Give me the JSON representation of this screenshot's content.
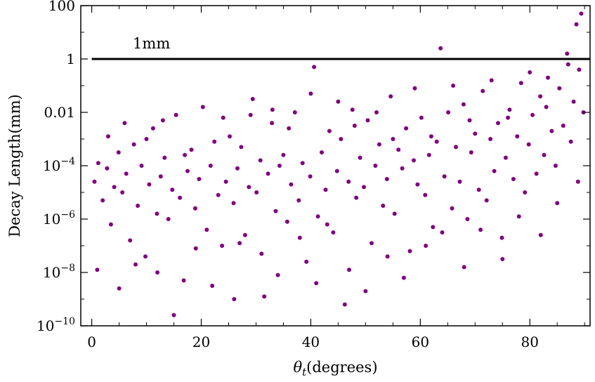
{
  "chart_data": {
    "type": "scatter",
    "title": "",
    "xlabel_symbol": "θ",
    "xlabel_subscript": "t",
    "xlabel_text": "(degrees)",
    "ylabel": "Decay Length(mm)",
    "xlim": [
      -2,
      91
    ],
    "ylim_log10": [
      -10,
      2
    ],
    "y_scale": "log",
    "x_ticks": [
      0,
      20,
      40,
      60,
      80
    ],
    "x_tick_labels": [
      "0",
      "20",
      "40",
      "60",
      "80"
    ],
    "y_ticks_log10": [
      2,
      0,
      -2,
      -4,
      -6,
      -8,
      -10
    ],
    "y_tick_labels": [
      {
        "base": "100",
        "exp": ""
      },
      {
        "base": "1",
        "exp": ""
      },
      {
        "base": "0.01",
        "exp": ""
      },
      {
        "base": "10",
        "exp": "−4"
      },
      {
        "base": "10",
        "exp": "−6"
      },
      {
        "base": "10",
        "exp": "−8"
      },
      {
        "base": "10",
        "exp": "−10"
      }
    ],
    "grid": false,
    "marker_color": "#800080",
    "reference_line": {
      "y_value": 1,
      "label": "1mm",
      "color": "#000000"
    },
    "series": [
      {
        "points": [
          [
            0.5,
            -4.6
          ],
          [
            1.2,
            -3.9
          ],
          [
            2.0,
            -5.3
          ],
          [
            2.8,
            -4.1
          ],
          [
            3.5,
            -6.2
          ],
          [
            4.1,
            -4.8
          ],
          [
            4.9,
            -3.5
          ],
          [
            5.6,
            -5.0
          ],
          [
            6.3,
            -4.3
          ],
          [
            7.0,
            -6.8
          ],
          [
            7.7,
            -3.2
          ],
          [
            8.4,
            -5.5
          ],
          [
            9.1,
            -4.0
          ],
          [
            9.8,
            -7.4
          ],
          [
            10.5,
            -4.7
          ],
          [
            11.2,
            -2.6
          ],
          [
            11.9,
            -5.8
          ],
          [
            12.6,
            -4.4
          ],
          [
            13.3,
            -3.7
          ],
          [
            14.0,
            -6.0
          ],
          [
            14.7,
            -4.9
          ],
          [
            15.4,
            -2.1
          ],
          [
            16.1,
            -5.2
          ],
          [
            16.8,
            -8.3
          ],
          [
            17.5,
            -4.2
          ],
          [
            18.2,
            -3.4
          ],
          [
            18.9,
            -5.6
          ],
          [
            19.6,
            -4.5
          ],
          [
            20.3,
            -1.8
          ],
          [
            21.0,
            -6.4
          ],
          [
            21.7,
            -4.0
          ],
          [
            22.4,
            -3.1
          ],
          [
            23.1,
            -5.1
          ],
          [
            23.8,
            -7.0
          ],
          [
            24.5,
            -4.6
          ],
          [
            25.2,
            -2.9
          ],
          [
            25.9,
            -5.4
          ],
          [
            26.6,
            -4.1
          ],
          [
            27.3,
            -3.3
          ],
          [
            28.0,
            -6.6
          ],
          [
            28.7,
            -4.8
          ],
          [
            29.4,
            -1.5
          ],
          [
            30.1,
            -5.0
          ],
          [
            30.8,
            -3.8
          ],
          [
            31.5,
            -8.9
          ],
          [
            32.2,
            -4.3
          ],
          [
            32.9,
            -2.4
          ],
          [
            33.6,
            -5.7
          ],
          [
            34.3,
            -4.0
          ],
          [
            35.0,
            -3.6
          ],
          [
            35.7,
            -6.1
          ],
          [
            36.4,
            -4.7
          ],
          [
            37.1,
            -2.0
          ],
          [
            37.8,
            -5.3
          ],
          [
            38.5,
            -3.9
          ],
          [
            39.2,
            -7.6
          ],
          [
            39.9,
            -4.4
          ],
          [
            40.6,
            -0.3
          ],
          [
            41.3,
            -5.9
          ],
          [
            42.0,
            -3.5
          ],
          [
            42.7,
            -4.9
          ],
          [
            43.4,
            -2.7
          ],
          [
            44.1,
            -6.5
          ],
          [
            44.8,
            -4.2
          ],
          [
            45.5,
            -3.0
          ],
          [
            46.2,
            -9.2
          ],
          [
            46.9,
            -4.6
          ],
          [
            47.6,
            -1.9
          ],
          [
            48.3,
            -5.2
          ],
          [
            49.0,
            -3.7
          ],
          [
            49.7,
            -4.8
          ],
          [
            50.4,
            -2.3
          ],
          [
            51.1,
            -6.9
          ],
          [
            51.8,
            -4.0
          ],
          [
            52.5,
            -3.2
          ],
          [
            53.2,
            -5.5
          ],
          [
            53.9,
            -4.5
          ],
          [
            54.6,
            -1.4
          ],
          [
            55.3,
            -5.8
          ],
          [
            56.0,
            -3.4
          ],
          [
            56.7,
            -4.1
          ],
          [
            57.4,
            -2.6
          ],
          [
            58.1,
            -7.2
          ],
          [
            58.8,
            -3.8
          ],
          [
            59.5,
            -4.7
          ],
          [
            60.2,
            -2.2
          ],
          [
            60.9,
            -5.1
          ],
          [
            61.6,
            -3.6
          ],
          [
            62.3,
            -6.3
          ],
          [
            63.0,
            -3.1
          ],
          [
            63.7,
            0.4
          ],
          [
            64.4,
            -4.4
          ],
          [
            65.1,
            -2.0
          ],
          [
            65.8,
            -5.6
          ],
          [
            66.5,
            -3.3
          ],
          [
            67.2,
            -4.6
          ],
          [
            67.9,
            -1.7
          ],
          [
            68.6,
            -6.0
          ],
          [
            69.3,
            -3.5
          ],
          [
            70.0,
            -2.8
          ],
          [
            70.7,
            -4.9
          ],
          [
            71.4,
            -1.2
          ],
          [
            72.1,
            -5.3
          ],
          [
            72.8,
            -3.0
          ],
          [
            73.5,
            -4.2
          ],
          [
            74.2,
            -2.4
          ],
          [
            74.9,
            -6.7
          ],
          [
            75.6,
            -3.7
          ],
          [
            76.3,
            -1.9
          ],
          [
            77.0,
            -4.5
          ],
          [
            77.7,
            -2.9
          ],
          [
            78.4,
            -0.9
          ],
          [
            79.1,
            -5.0
          ],
          [
            79.8,
            -3.2
          ],
          [
            80.5,
            -2.1
          ],
          [
            81.2,
            -4.3
          ],
          [
            81.9,
            -1.4
          ],
          [
            82.6,
            -3.6
          ],
          [
            83.3,
            -0.7
          ],
          [
            84.0,
            -2.7
          ],
          [
            84.7,
            -4.0
          ],
          [
            85.4,
            -1.1
          ],
          [
            86.1,
            -2.5
          ],
          [
            86.8,
            0.2
          ],
          [
            87.5,
            -3.1
          ],
          [
            88.0,
            -1.6
          ],
          [
            88.5,
            1.3
          ],
          [
            89.0,
            -0.4
          ],
          [
            89.4,
            1.7
          ],
          [
            89.8,
            -2.0
          ],
          [
            1.0,
            -7.9
          ],
          [
            3.0,
            -2.9
          ],
          [
            5.0,
            -8.6
          ],
          [
            6.0,
            -2.4
          ],
          [
            8.0,
            -7.7
          ],
          [
            10.0,
            -3.0
          ],
          [
            12.0,
            -8.0
          ],
          [
            13.0,
            -2.3
          ],
          [
            15.0,
            -9.6
          ],
          [
            17.0,
            -3.6
          ],
          [
            19.0,
            -7.1
          ],
          [
            22.0,
            -8.5
          ],
          [
            24.0,
            -2.2
          ],
          [
            26.0,
            -9.0
          ],
          [
            27.0,
            -6.9
          ],
          [
            29.0,
            -2.1
          ],
          [
            31.0,
            -7.3
          ],
          [
            33.0,
            -1.9
          ],
          [
            34.0,
            -8.1
          ],
          [
            36.0,
            -2.6
          ],
          [
            38.0,
            -6.7
          ],
          [
            40.0,
            -1.3
          ],
          [
            41.0,
            -8.4
          ],
          [
            43.0,
            -6.2
          ],
          [
            45.0,
            -1.6
          ],
          [
            47.0,
            -7.9
          ],
          [
            48.0,
            -2.5
          ],
          [
            50.0,
            -8.7
          ],
          [
            52.0,
            -2.0
          ],
          [
            54.0,
            -7.4
          ],
          [
            55.0,
            -3.0
          ],
          [
            57.0,
            -8.2
          ],
          [
            59.0,
            -1.1
          ],
          [
            61.0,
            -7.0
          ],
          [
            62.0,
            -2.9
          ],
          [
            64.0,
            -6.5
          ],
          [
            66.0,
            -1.0
          ],
          [
            68.0,
            -7.8
          ],
          [
            69.0,
            -2.3
          ],
          [
            71.0,
            -6.4
          ],
          [
            73.0,
            -0.8
          ],
          [
            75.0,
            -7.5
          ],
          [
            76.0,
            -2.2
          ],
          [
            78.0,
            -5.9
          ],
          [
            80.0,
            -0.5
          ],
          [
            82.0,
            -6.6
          ],
          [
            83.0,
            -1.8
          ],
          [
            85.0,
            -5.4
          ],
          [
            87.0,
            -0.2
          ],
          [
            88.8,
            -4.6
          ]
        ]
      }
    ]
  }
}
